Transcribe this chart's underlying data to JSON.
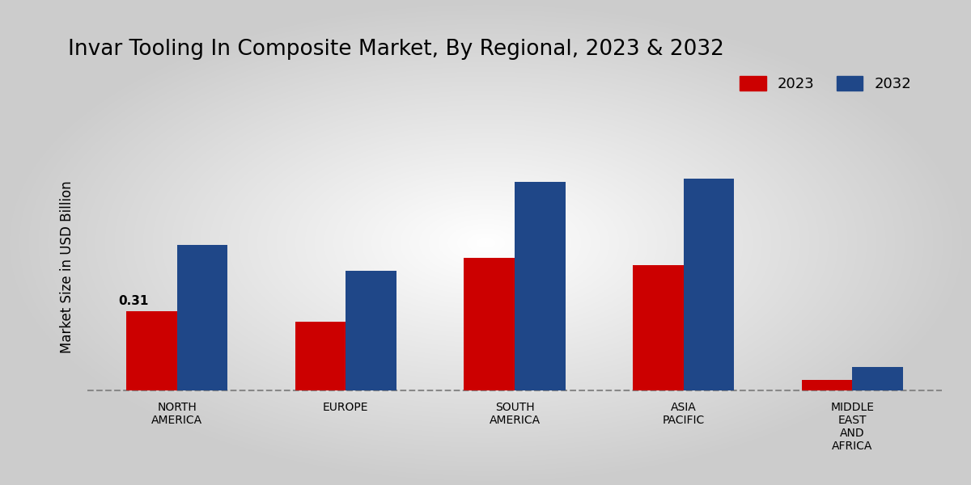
{
  "title": "Invar Tooling In Composite Market, By Regional, 2023 & 2032",
  "ylabel": "Market Size in USD Billion",
  "categories": [
    "NORTH\nAMERICA",
    "EUROPE",
    "SOUTH\nAMERICA",
    "ASIA\nPACIFIC",
    "MIDDLE\nEAST\nAND\nAFRICA"
  ],
  "values_2023": [
    0.31,
    0.27,
    0.52,
    0.49,
    0.04
  ],
  "values_2032": [
    0.57,
    0.47,
    0.82,
    0.83,
    0.09
  ],
  "color_2023": "#cc0000",
  "color_2032": "#1f4788",
  "bar_width": 0.3,
  "annotation_text": "0.31",
  "background_color": "#e0e0e0",
  "title_fontsize": 19,
  "legend_fontsize": 13,
  "ylabel_fontsize": 12,
  "tick_fontsize": 10,
  "ylim": [
    -0.03,
    1.0
  ]
}
